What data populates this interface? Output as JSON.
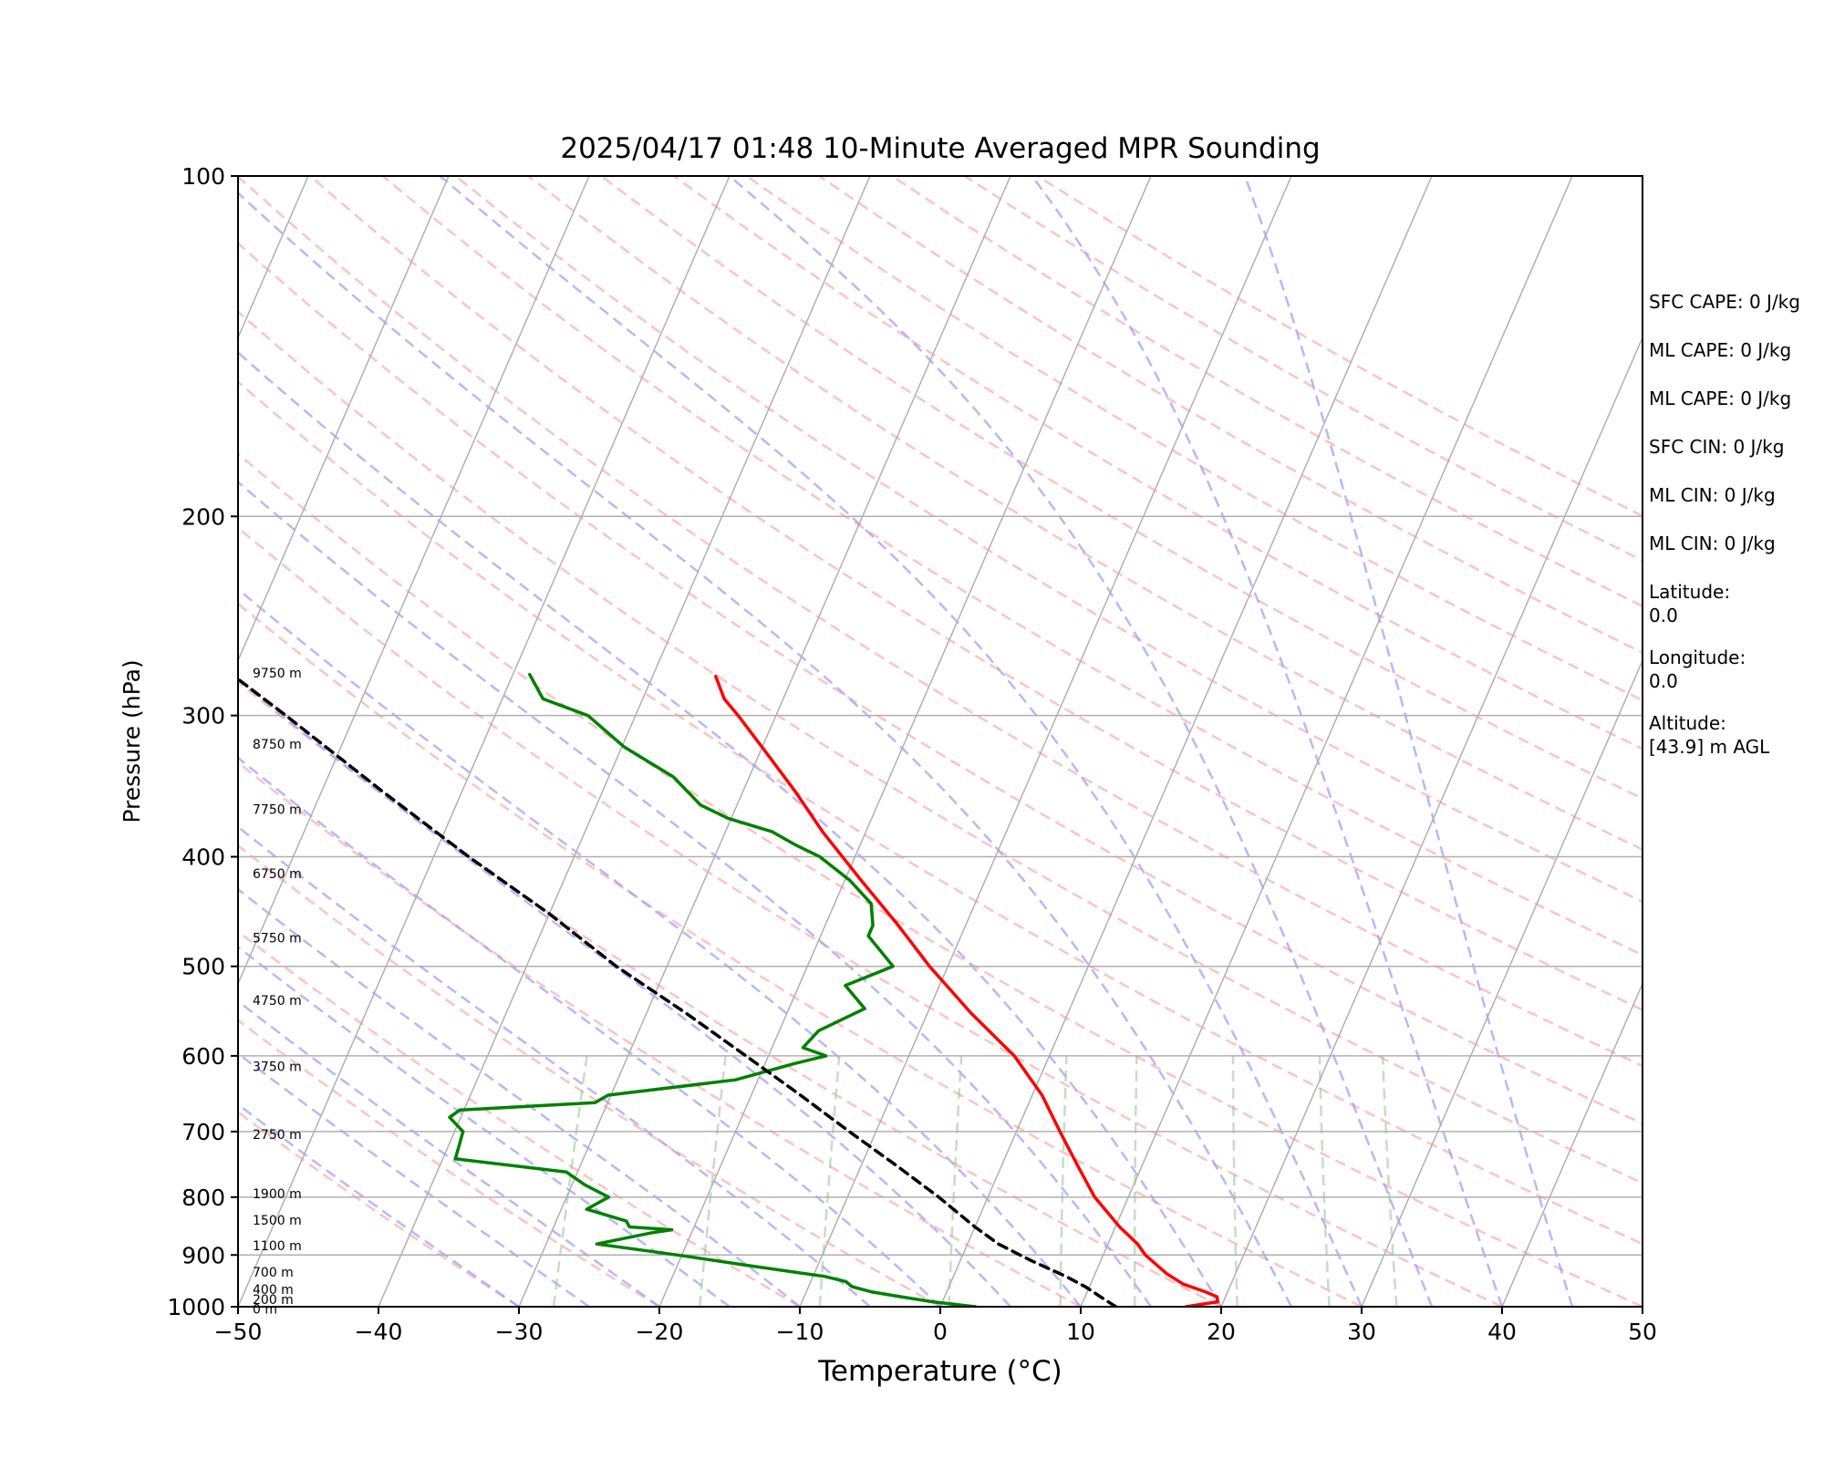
{
  "chart_data": {
    "type": "skew-t",
    "title": "2025/04/17 01:48 10-Minute Averaged MPR Sounding",
    "xlabel": "Temperature (°C)",
    "ylabel": "Pressure (hPa)",
    "xlim": [
      -50,
      50
    ],
    "ylim": [
      1000,
      100
    ],
    "x_ticks": [
      "−50",
      "−40",
      "−30",
      "−20",
      "−10",
      "0",
      "10",
      "20",
      "30",
      "40",
      "50"
    ],
    "y_ticks": [
      "100",
      "200",
      "300",
      "400",
      "500",
      "600",
      "700",
      "800",
      "900",
      "1000"
    ],
    "y_tick_values": [
      100,
      200,
      300,
      400,
      500,
      600,
      700,
      800,
      900,
      1000
    ],
    "grid": "horizontal isobars at labeled pressures; skewed isotherms every 10 °C",
    "background_lines": {
      "dry_adiabats": {
        "color": "#ff9999",
        "style": "dashed"
      },
      "moist_adiabats": {
        "color": "#9999ff",
        "style": "dashed"
      },
      "mixing_ratio_lines": {
        "color": "#99cc99",
        "style": "dashed"
      }
    },
    "series": [
      {
        "key": "temperature",
        "color": "#ff0000",
        "points": [
          [
            1000,
            17.5
          ],
          [
            990,
            19.6
          ],
          [
            980,
            19.4
          ],
          [
            970,
            18.4
          ],
          [
            955,
            16.6
          ],
          [
            935,
            15.1
          ],
          [
            900,
            13.0
          ],
          [
            880,
            12.1
          ],
          [
            850,
            10.3
          ],
          [
            800,
            7.6
          ],
          [
            750,
            5.4
          ],
          [
            700,
            3.1
          ],
          [
            650,
            0.7
          ],
          [
            600,
            -2.5
          ],
          [
            550,
            -6.9
          ],
          [
            500,
            -11.3
          ],
          [
            460,
            -14.8
          ],
          [
            420,
            -18.8
          ],
          [
            380,
            -23.1
          ],
          [
            350,
            -26.3
          ],
          [
            320,
            -30.0
          ],
          [
            300,
            -32.7
          ],
          [
            290,
            -34.2
          ],
          [
            277,
            -35.5
          ]
        ]
      },
      {
        "key": "dewpoint",
        "color": "#008000",
        "points": [
          [
            1000,
            2.5
          ],
          [
            990,
            -0.7
          ],
          [
            980,
            -3.1
          ],
          [
            970,
            -5.4
          ],
          [
            960,
            -6.9
          ],
          [
            950,
            -7.5
          ],
          [
            940,
            -9.2
          ],
          [
            920,
            -14.8
          ],
          [
            900,
            -20.3
          ],
          [
            880,
            -26.4
          ],
          [
            860,
            -22.8
          ],
          [
            855,
            -21.5
          ],
          [
            850,
            -24.6
          ],
          [
            840,
            -25.0
          ],
          [
            820,
            -28.2
          ],
          [
            800,
            -27.0
          ],
          [
            780,
            -29.1
          ],
          [
            760,
            -30.8
          ],
          [
            740,
            -39.1
          ],
          [
            700,
            -39.4
          ],
          [
            680,
            -40.8
          ],
          [
            670,
            -40.3
          ],
          [
            660,
            -30.9
          ],
          [
            650,
            -30.2
          ],
          [
            630,
            -21.6
          ],
          [
            610,
            -18.0
          ],
          [
            600,
            -15.9
          ],
          [
            590,
            -17.8
          ],
          [
            570,
            -17.2
          ],
          [
            545,
            -14.6
          ],
          [
            520,
            -16.7
          ],
          [
            500,
            -13.9
          ],
          [
            470,
            -16.6
          ],
          [
            460,
            -16.6
          ],
          [
            440,
            -17.4
          ],
          [
            420,
            -19.6
          ],
          [
            400,
            -22.5
          ],
          [
            390,
            -24.7
          ],
          [
            380,
            -26.7
          ],
          [
            370,
            -30.2
          ],
          [
            360,
            -32.6
          ],
          [
            340,
            -35.4
          ],
          [
            320,
            -39.8
          ],
          [
            300,
            -43.4
          ],
          [
            290,
            -47.1
          ],
          [
            276,
            -48.8
          ]
        ]
      },
      {
        "key": "parcel",
        "color": "#000000",
        "style": "dashed",
        "points": [
          [
            1000,
            12.5
          ],
          [
            980,
            11.1
          ],
          [
            960,
            9.7
          ],
          [
            940,
            8.0
          ],
          [
            910,
            5.0
          ],
          [
            880,
            2.2
          ],
          [
            850,
            0.0
          ],
          [
            800,
            -3.5
          ],
          [
            750,
            -7.5
          ],
          [
            700,
            -11.9
          ],
          [
            650,
            -16.5
          ],
          [
            600,
            -21.6
          ],
          [
            550,
            -27.2
          ],
          [
            500,
            -33.6
          ],
          [
            450,
            -39.9
          ],
          [
            400,
            -47.5
          ],
          [
            350,
            -55.7
          ],
          [
            300,
            -64.9
          ],
          [
            276,
            -70.0
          ]
        ]
      }
    ],
    "height_labels": [
      {
        "text": "9750 m",
        "p": 275
      },
      {
        "text": "8750 m",
        "p": 318
      },
      {
        "text": "7750 m",
        "p": 363
      },
      {
        "text": "6750 m",
        "p": 414
      },
      {
        "text": "5750 m",
        "p": 472
      },
      {
        "text": "4750 m",
        "p": 536
      },
      {
        "text": "3750 m",
        "p": 613
      },
      {
        "text": "2750 m",
        "p": 704
      },
      {
        "text": "1900 m",
        "p": 794
      },
      {
        "text": "1500 m",
        "p": 838
      },
      {
        "text": "1100 m",
        "p": 883
      },
      {
        "text": "700 m",
        "p": 932
      },
      {
        "text": "400 m",
        "p": 965
      },
      {
        "text": "200 m",
        "p": 985
      },
      {
        "text": "0 m",
        "p": 1005
      }
    ],
    "stats_panel": [
      "SFC CAPE: 0 J/kg",
      "ML CAPE: 0 J/kg",
      "ML CAPE: 0 J/kg",
      "SFC CIN: 0 J/kg",
      "ML CIN: 0 J/kg",
      "ML CIN: 0 J/kg",
      "Latitude:\n0.0",
      "Longitude:\n0.0",
      "Altitude:\n[43.9] m AGL"
    ]
  }
}
